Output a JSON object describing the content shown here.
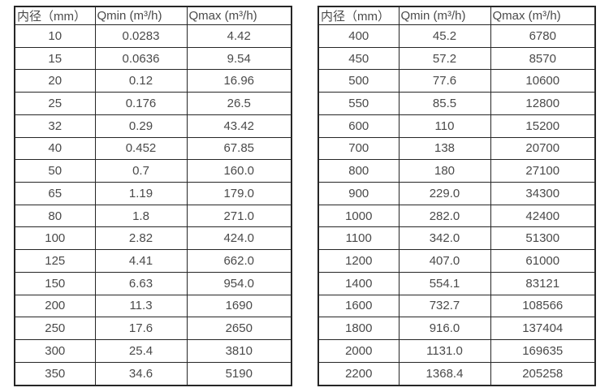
{
  "page": {
    "background": "#ffffff",
    "text_color": "#4a4a4a",
    "border_color": "#262626"
  },
  "tables": [
    {
      "name": "flow-table-left",
      "headers": [
        "内径（mm）",
        "Qmin (m³/h)",
        "Qmax (m³/h)"
      ],
      "rows": [
        [
          "10",
          "0.0283",
          "4.42"
        ],
        [
          "15",
          "0.0636",
          "9.54"
        ],
        [
          "20",
          "0.12",
          "16.96"
        ],
        [
          "25",
          "0.176",
          "26.5"
        ],
        [
          "32",
          "0.29",
          "43.42"
        ],
        [
          "40",
          "0.452",
          "67.85"
        ],
        [
          "50",
          "0.7",
          "160.0"
        ],
        [
          "65",
          "1.19",
          "179.0"
        ],
        [
          "80",
          "1.8",
          "271.0"
        ],
        [
          "100",
          "2.82",
          "424.0"
        ],
        [
          "125",
          "4.41",
          "662.0"
        ],
        [
          "150",
          "6.63",
          "954.0"
        ],
        [
          "200",
          "11.3",
          "1690"
        ],
        [
          "250",
          "17.6",
          "2650"
        ],
        [
          "300",
          "25.4",
          "3810"
        ],
        [
          "350",
          "34.6",
          "5190"
        ]
      ]
    },
    {
      "name": "flow-table-right",
      "headers": [
        "内径（mm）",
        "Qmin (m³/h)",
        "Qmax (m³/h)"
      ],
      "rows": [
        [
          "400",
          "45.2",
          "6780"
        ],
        [
          "450",
          "57.2",
          "8570"
        ],
        [
          "500",
          "77.6",
          "10600"
        ],
        [
          "550",
          "85.5",
          "12800"
        ],
        [
          "600",
          "110",
          "15200"
        ],
        [
          "700",
          "138",
          "20700"
        ],
        [
          "800",
          "180",
          "27100"
        ],
        [
          "900",
          "229.0",
          "34300"
        ],
        [
          "1000",
          "282.0",
          "42400"
        ],
        [
          "1100",
          "342.0",
          "51300"
        ],
        [
          "1200",
          "407.0",
          "61000"
        ],
        [
          "1400",
          "554.1",
          "83121"
        ],
        [
          "1600",
          "732.7",
          "108566"
        ],
        [
          "1800",
          "916.0",
          "137404"
        ],
        [
          "2000",
          "1131.0",
          "169635"
        ],
        [
          "2200",
          "1368.4",
          "205258"
        ]
      ]
    }
  ]
}
